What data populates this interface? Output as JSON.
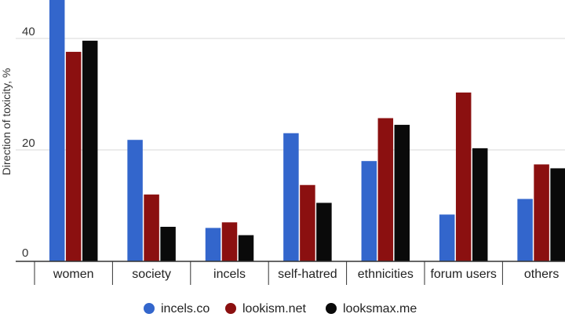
{
  "chart_data": {
    "type": "bar",
    "ylabel": "Direction of toxicity, %",
    "ylim": [
      0,
      47
    ],
    "yticks": [
      0,
      20,
      40
    ],
    "grid": true,
    "legend_position": "bottom",
    "categories": [
      "women",
      "society",
      "incels",
      "self-hatred",
      "ethnicities",
      "forum users",
      "others"
    ],
    "series": [
      {
        "name": "incels.co",
        "color": "#3366cc",
        "values": [
          47,
          21.8,
          6.0,
          23.0,
          18.0,
          8.4,
          11.2
        ]
      },
      {
        "name": "lookism.net",
        "color": "#8b1010",
        "values": [
          37.6,
          12.0,
          7.0,
          13.7,
          25.7,
          30.3,
          17.4
        ]
      },
      {
        "name": "looksmax.me",
        "color": "#0a0a0a",
        "values": [
          39.6,
          6.2,
          4.7,
          10.5,
          24.5,
          20.3,
          16.7
        ]
      }
    ]
  }
}
